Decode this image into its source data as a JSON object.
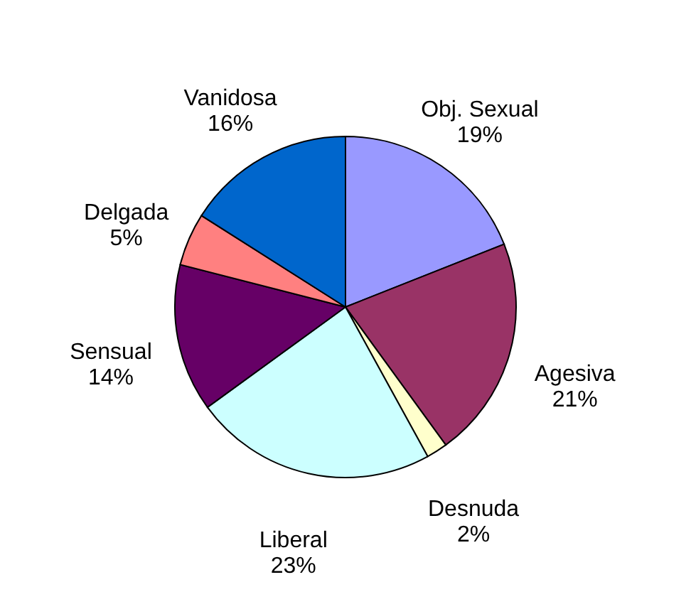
{
  "chart_data": {
    "type": "pie",
    "categories": [
      "Obj. Sexual",
      "Agesiva",
      "Desnuda",
      "Liberal",
      "Sensual",
      "Delgada",
      "Vanidosa"
    ],
    "values": [
      19,
      21,
      2,
      23,
      14,
      5,
      16
    ],
    "colors": [
      "#9999ff",
      "#993366",
      "#ffffcc",
      "#ccffff",
      "#660066",
      "#ff8080",
      "#0066cc"
    ],
    "value_labels": [
      "19%",
      "21%",
      "2%",
      "23%",
      "14%",
      "5%",
      "16%"
    ]
  }
}
